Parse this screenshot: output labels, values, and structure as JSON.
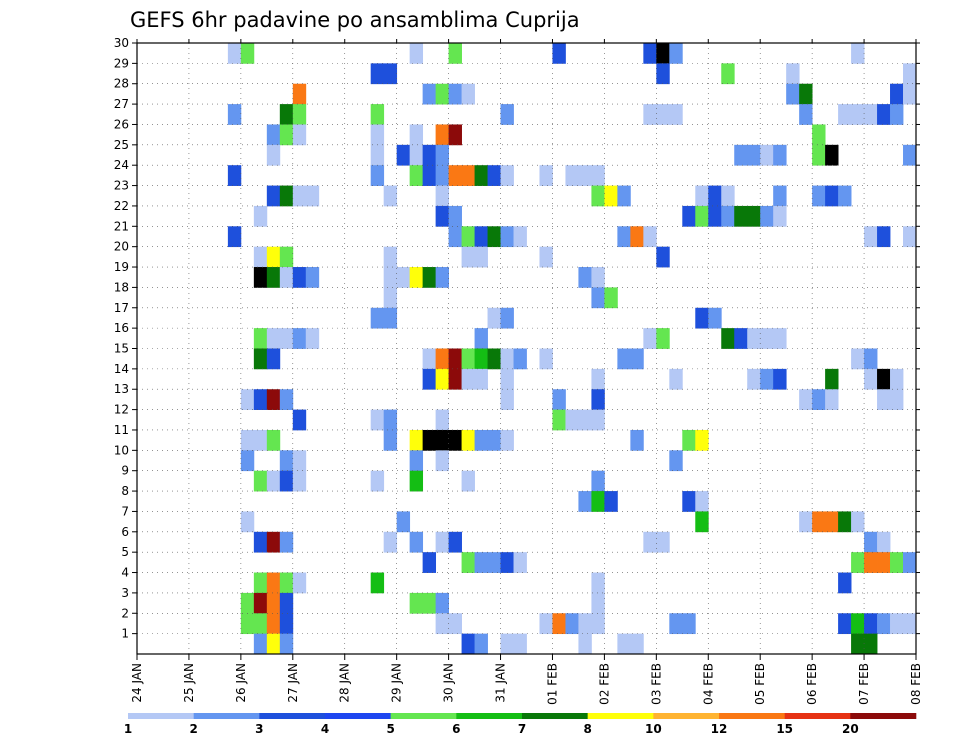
{
  "chart_data": {
    "type": "heatmap",
    "title": "GEFS 6hr padavine po ansamblima Cuprija",
    "xlabel": "",
    "ylabel": "",
    "x_tick_labels": [
      "24 JAN",
      "25 JAN",
      "26 JAN",
      "27 JAN",
      "28 JAN",
      "29 JAN",
      "30 JAN",
      "31 JAN",
      "01 FEB",
      "02 FEB",
      "03 FEB",
      "04 FEB",
      "05 FEB",
      "06 FEB",
      "07 FEB",
      "08 FEB"
    ],
    "y_tick_labels": [
      "1",
      "2",
      "3",
      "4",
      "5",
      "6",
      "7",
      "8",
      "9",
      "10",
      "11",
      "12",
      "13",
      "14",
      "15",
      "16",
      "17",
      "18",
      "19",
      "20",
      "21",
      "22",
      "23",
      "24",
      "25",
      "26",
      "27",
      "28",
      "29",
      "30"
    ],
    "xlim_steps": [
      0,
      60
    ],
    "ylim_members": [
      0,
      30
    ],
    "grid": true,
    "legend": {
      "placement": "bottom",
      "labels": [
        "1",
        "2",
        "3",
        "4",
        "5",
        "6",
        "7",
        "8",
        "10",
        "12",
        "15",
        "20"
      ],
      "colors": [
        "#b4c8f5",
        "#6496f0",
        "#1e50dc",
        "#1e46f0",
        "#64e650",
        "#14be14",
        "#087808",
        "#ffff0a",
        "#ffb432",
        "#fa7814",
        "#e63214",
        "#8c0a0a"
      ]
    },
    "cells": [
      [
        8,
        30,
        1
      ],
      [
        9,
        30,
        5
      ],
      [
        22,
        30,
        1
      ],
      [
        25,
        30,
        5
      ],
      [
        33,
        30,
        3
      ],
      [
        40,
        30,
        3
      ],
      [
        41,
        30,
        13
      ],
      [
        42,
        30,
        2
      ],
      [
        56,
        30,
        1
      ],
      [
        19,
        29,
        3
      ],
      [
        20,
        29,
        3
      ],
      [
        41,
        29,
        3
      ],
      [
        46,
        29,
        5
      ],
      [
        51,
        29,
        1
      ],
      [
        60,
        29,
        1
      ],
      [
        13,
        28,
        10
      ],
      [
        23,
        28,
        2
      ],
      [
        24,
        28,
        5
      ],
      [
        25,
        28,
        2
      ],
      [
        26,
        28,
        1
      ],
      [
        51,
        28,
        2
      ],
      [
        52,
        28,
        7
      ],
      [
        59,
        28,
        3
      ],
      [
        60,
        28,
        1
      ],
      [
        8,
        27,
        2
      ],
      [
        12,
        27,
        7
      ],
      [
        13,
        27,
        5
      ],
      [
        19,
        27,
        5
      ],
      [
        29,
        27,
        2
      ],
      [
        40,
        27,
        1
      ],
      [
        41,
        27,
        1
      ],
      [
        42,
        27,
        1
      ],
      [
        52,
        27,
        2
      ],
      [
        55,
        27,
        1
      ],
      [
        56,
        27,
        1
      ],
      [
        57,
        27,
        1
      ],
      [
        58,
        27,
        3
      ],
      [
        59,
        27,
        2
      ],
      [
        11,
        26,
        2
      ],
      [
        12,
        26,
        5
      ],
      [
        13,
        26,
        1
      ],
      [
        19,
        26,
        1
      ],
      [
        22,
        26,
        1
      ],
      [
        24,
        26,
        10
      ],
      [
        25,
        26,
        12
      ],
      [
        53,
        26,
        5
      ],
      [
        11,
        25,
        1
      ],
      [
        19,
        25,
        1
      ],
      [
        21,
        25,
        3
      ],
      [
        22,
        25,
        1
      ],
      [
        23,
        25,
        3
      ],
      [
        24,
        25,
        2
      ],
      [
        47,
        25,
        2
      ],
      [
        48,
        25,
        2
      ],
      [
        49,
        25,
        1
      ],
      [
        50,
        25,
        2
      ],
      [
        53,
        25,
        5
      ],
      [
        54,
        25,
        15
      ],
      [
        60,
        25,
        2
      ],
      [
        8,
        24,
        3
      ],
      [
        19,
        24,
        2
      ],
      [
        22,
        24,
        5
      ],
      [
        23,
        24,
        3
      ],
      [
        24,
        24,
        2
      ],
      [
        25,
        24,
        10
      ],
      [
        26,
        24,
        10
      ],
      [
        27,
        24,
        7
      ],
      [
        28,
        24,
        3
      ],
      [
        29,
        24,
        1
      ],
      [
        32,
        24,
        1
      ],
      [
        34,
        24,
        1
      ],
      [
        35,
        24,
        1
      ],
      [
        36,
        24,
        1
      ],
      [
        11,
        23,
        3
      ],
      [
        12,
        23,
        7
      ],
      [
        13,
        23,
        1
      ],
      [
        14,
        23,
        1
      ],
      [
        20,
        23,
        1
      ],
      [
        24,
        23,
        1
      ],
      [
        36,
        23,
        5
      ],
      [
        37,
        23,
        8
      ],
      [
        38,
        23,
        2
      ],
      [
        44,
        23,
        1
      ],
      [
        45,
        23,
        3
      ],
      [
        46,
        23,
        1
      ],
      [
        50,
        23,
        2
      ],
      [
        53,
        23,
        2
      ],
      [
        54,
        23,
        3
      ],
      [
        55,
        23,
        2
      ],
      [
        10,
        22,
        1
      ],
      [
        24,
        22,
        3
      ],
      [
        25,
        22,
        2
      ],
      [
        43,
        22,
        3
      ],
      [
        44,
        22,
        5
      ],
      [
        45,
        22,
        3
      ],
      [
        46,
        22,
        2
      ],
      [
        47,
        22,
        7
      ],
      [
        48,
        22,
        7
      ],
      [
        49,
        22,
        2
      ],
      [
        50,
        22,
        1
      ],
      [
        8,
        21,
        3
      ],
      [
        25,
        21,
        2
      ],
      [
        26,
        21,
        5
      ],
      [
        27,
        21,
        3
      ],
      [
        28,
        21,
        7
      ],
      [
        29,
        21,
        2
      ],
      [
        30,
        21,
        1
      ],
      [
        38,
        21,
        2
      ],
      [
        39,
        21,
        10
      ],
      [
        40,
        21,
        1
      ],
      [
        57,
        21,
        1
      ],
      [
        58,
        21,
        3
      ],
      [
        60,
        21,
        1
      ],
      [
        10,
        20,
        1
      ],
      [
        11,
        20,
        8
      ],
      [
        12,
        20,
        5
      ],
      [
        20,
        20,
        1
      ],
      [
        26,
        20,
        1
      ],
      [
        27,
        20,
        1
      ],
      [
        32,
        20,
        1
      ],
      [
        41,
        20,
        3
      ],
      [
        10,
        19,
        15
      ],
      [
        11,
        19,
        7
      ],
      [
        12,
        19,
        1
      ],
      [
        13,
        19,
        3
      ],
      [
        14,
        19,
        2
      ],
      [
        20,
        19,
        1
      ],
      [
        21,
        19,
        1
      ],
      [
        22,
        19,
        8
      ],
      [
        23,
        19,
        7
      ],
      [
        24,
        19,
        2
      ],
      [
        35,
        19,
        2
      ],
      [
        36,
        19,
        1
      ],
      [
        20,
        18,
        1
      ],
      [
        36,
        18,
        2
      ],
      [
        37,
        18,
        5
      ],
      [
        19,
        17,
        2
      ],
      [
        20,
        17,
        2
      ],
      [
        28,
        17,
        1
      ],
      [
        29,
        17,
        2
      ],
      [
        44,
        17,
        3
      ],
      [
        45,
        17,
        2
      ],
      [
        10,
        16,
        5
      ],
      [
        11,
        16,
        1
      ],
      [
        12,
        16,
        1
      ],
      [
        13,
        16,
        2
      ],
      [
        14,
        16,
        1
      ],
      [
        27,
        16,
        2
      ],
      [
        40,
        16,
        1
      ],
      [
        41,
        16,
        5
      ],
      [
        46,
        16,
        7
      ],
      [
        47,
        16,
        3
      ],
      [
        48,
        16,
        1
      ],
      [
        49,
        16,
        1
      ],
      [
        50,
        16,
        1
      ],
      [
        10,
        15,
        7
      ],
      [
        11,
        15,
        3
      ],
      [
        23,
        15,
        1
      ],
      [
        24,
        15,
        10
      ],
      [
        25,
        15,
        12
      ],
      [
        26,
        15,
        5
      ],
      [
        27,
        15,
        6
      ],
      [
        28,
        15,
        7
      ],
      [
        29,
        15,
        1
      ],
      [
        30,
        15,
        2
      ],
      [
        32,
        15,
        1
      ],
      [
        38,
        15,
        2
      ],
      [
        39,
        15,
        2
      ],
      [
        56,
        15,
        1
      ],
      [
        57,
        15,
        2
      ],
      [
        23,
        14,
        3
      ],
      [
        24,
        14,
        8
      ],
      [
        25,
        14,
        12
      ],
      [
        26,
        14,
        1
      ],
      [
        27,
        14,
        1
      ],
      [
        29,
        14,
        1
      ],
      [
        36,
        14,
        1
      ],
      [
        42,
        14,
        1
      ],
      [
        48,
        14,
        1
      ],
      [
        49,
        14,
        2
      ],
      [
        50,
        14,
        3
      ],
      [
        54,
        14,
        7
      ],
      [
        57,
        14,
        1
      ],
      [
        58,
        14,
        20
      ],
      [
        59,
        14,
        1
      ],
      [
        9,
        13,
        1
      ],
      [
        10,
        13,
        3
      ],
      [
        11,
        13,
        12
      ],
      [
        12,
        13,
        2
      ],
      [
        29,
        13,
        1
      ],
      [
        33,
        13,
        2
      ],
      [
        36,
        13,
        3
      ],
      [
        52,
        13,
        1
      ],
      [
        53,
        13,
        2
      ],
      [
        54,
        13,
        1
      ],
      [
        58,
        13,
        1
      ],
      [
        59,
        13,
        1
      ],
      [
        13,
        12,
        3
      ],
      [
        19,
        12,
        1
      ],
      [
        20,
        12,
        2
      ],
      [
        24,
        12,
        1
      ],
      [
        33,
        12,
        5
      ],
      [
        34,
        12,
        1
      ],
      [
        35,
        12,
        1
      ],
      [
        36,
        12,
        1
      ],
      [
        9,
        11,
        1
      ],
      [
        10,
        11,
        1
      ],
      [
        11,
        11,
        5
      ],
      [
        20,
        11,
        2
      ],
      [
        22,
        11,
        8
      ],
      [
        23,
        11,
        20
      ],
      [
        24,
        11,
        20
      ],
      [
        25,
        11,
        20
      ],
      [
        26,
        11,
        8
      ],
      [
        27,
        11,
        2
      ],
      [
        28,
        11,
        2
      ],
      [
        29,
        11,
        1
      ],
      [
        39,
        11,
        2
      ],
      [
        43,
        11,
        5
      ],
      [
        44,
        11,
        8
      ],
      [
        9,
        10,
        2
      ],
      [
        12,
        10,
        2
      ],
      [
        13,
        10,
        1
      ],
      [
        22,
        10,
        2
      ],
      [
        24,
        10,
        1
      ],
      [
        42,
        10,
        2
      ],
      [
        10,
        9,
        5
      ],
      [
        11,
        9,
        1
      ],
      [
        12,
        9,
        3
      ],
      [
        13,
        9,
        1
      ],
      [
        19,
        9,
        1
      ],
      [
        22,
        9,
        6
      ],
      [
        26,
        9,
        1
      ],
      [
        36,
        9,
        2
      ],
      [
        35,
        8,
        2
      ],
      [
        36,
        8,
        6
      ],
      [
        37,
        8,
        3
      ],
      [
        43,
        8,
        3
      ],
      [
        44,
        8,
        1
      ],
      [
        9,
        7,
        1
      ],
      [
        21,
        7,
        2
      ],
      [
        44,
        7,
        6
      ],
      [
        52,
        7,
        1
      ],
      [
        53,
        7,
        10
      ],
      [
        54,
        7,
        10
      ],
      [
        55,
        7,
        7
      ],
      [
        56,
        7,
        1
      ],
      [
        10,
        6,
        3
      ],
      [
        11,
        6,
        12
      ],
      [
        12,
        6,
        2
      ],
      [
        20,
        6,
        1
      ],
      [
        22,
        6,
        2
      ],
      [
        24,
        6,
        1
      ],
      [
        25,
        6,
        3
      ],
      [
        40,
        6,
        1
      ],
      [
        41,
        6,
        1
      ],
      [
        57,
        6,
        2
      ],
      [
        58,
        6,
        1
      ],
      [
        23,
        5,
        3
      ],
      [
        26,
        5,
        5
      ],
      [
        27,
        5,
        2
      ],
      [
        28,
        5,
        2
      ],
      [
        29,
        5,
        3
      ],
      [
        30,
        5,
        1
      ],
      [
        56,
        5,
        5
      ],
      [
        57,
        5,
        10
      ],
      [
        58,
        5,
        10
      ],
      [
        59,
        5,
        5
      ],
      [
        60,
        5,
        2
      ],
      [
        10,
        4,
        5
      ],
      [
        11,
        4,
        10
      ],
      [
        12,
        4,
        5
      ],
      [
        13,
        4,
        1
      ],
      [
        19,
        4,
        6
      ],
      [
        36,
        4,
        1
      ],
      [
        55,
        4,
        3
      ],
      [
        9,
        3,
        5
      ],
      [
        10,
        3,
        12
      ],
      [
        11,
        3,
        10
      ],
      [
        12,
        3,
        3
      ],
      [
        22,
        3,
        5
      ],
      [
        23,
        3,
        5
      ],
      [
        24,
        3,
        2
      ],
      [
        36,
        3,
        1
      ],
      [
        9,
        2,
        5
      ],
      [
        10,
        2,
        5
      ],
      [
        11,
        2,
        10
      ],
      [
        12,
        2,
        3
      ],
      [
        24,
        2,
        1
      ],
      [
        25,
        2,
        1
      ],
      [
        32,
        2,
        1
      ],
      [
        33,
        2,
        10
      ],
      [
        34,
        2,
        2
      ],
      [
        35,
        2,
        1
      ],
      [
        36,
        2,
        1
      ],
      [
        42,
        2,
        2
      ],
      [
        43,
        2,
        2
      ],
      [
        55,
        2,
        3
      ],
      [
        56,
        2,
        6
      ],
      [
        57,
        2,
        3
      ],
      [
        58,
        2,
        2
      ],
      [
        59,
        2,
        1
      ],
      [
        60,
        2,
        1
      ],
      [
        10,
        1,
        2
      ],
      [
        11,
        1,
        8
      ],
      [
        12,
        1,
        2
      ],
      [
        26,
        1,
        3
      ],
      [
        27,
        1,
        2
      ],
      [
        29,
        1,
        1
      ],
      [
        30,
        1,
        1
      ],
      [
        35,
        1,
        1
      ],
      [
        38,
        1,
        1
      ],
      [
        39,
        1,
        1
      ],
      [
        56,
        1,
        7
      ],
      [
        57,
        1,
        7
      ]
    ]
  }
}
